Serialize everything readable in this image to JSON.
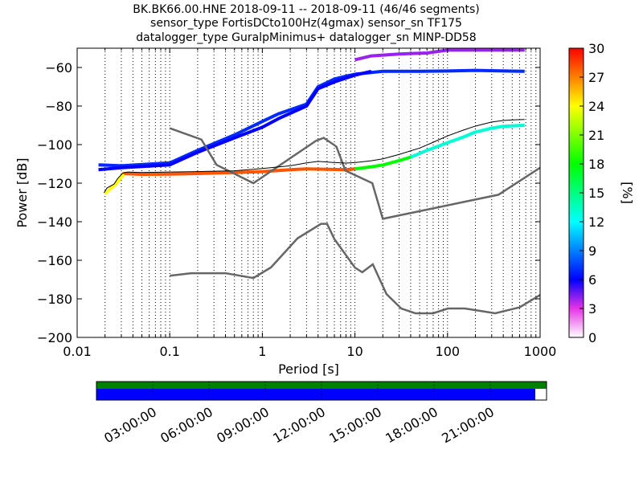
{
  "title_lines": [
    "BK.BK66.00.HNE   2018-09-11 -- 2018-09-11  (46/46 segments)",
    "sensor_type FortisDCto100Hz(4gmax) sensor_sn TF175",
    "datalogger_type GuralpMinimus+ datalogger_sn MINP-DD58"
  ],
  "chart_data": {
    "type": "heatmap",
    "title": "BK.BK66.00.HNE   2018-09-11 -- 2018-09-11  (46/46 segments)",
    "xlabel": "Period [s]",
    "ylabel": "Power [dB]",
    "x_scale": "log",
    "xlim": [
      0.01,
      1000
    ],
    "ylim": [
      -200,
      -50
    ],
    "x_ticks": [
      0.01,
      0.1,
      1,
      10,
      100,
      1000
    ],
    "x_tick_labels": [
      "0.01",
      "0.1",
      "1",
      "10",
      "100",
      "1000"
    ],
    "y_ticks": [
      -200,
      -180,
      -160,
      -140,
      -120,
      -100,
      -80,
      -60
    ],
    "y_tick_labels": [
      "−200",
      "−180",
      "−160",
      "−140",
      "−120",
      "−100",
      "−80",
      "−60"
    ],
    "grid": "dotted vertical",
    "colorbar": {
      "label": "[%]",
      "range": [
        0,
        30
      ],
      "ticks": [
        0,
        3,
        6,
        9,
        12,
        15,
        18,
        21,
        24,
        27,
        30
      ],
      "colormap": "pqlx"
    },
    "noise_models": {
      "high": [
        [
          0.1,
          -91.5
        ],
        [
          0.22,
          -97.4
        ],
        [
          0.32,
          -110.5
        ],
        [
          0.8,
          -120
        ],
        [
          3.8,
          -98
        ],
        [
          4.6,
          -96.5
        ],
        [
          6.3,
          -101
        ],
        [
          7.9,
          -113.5
        ],
        [
          15.4,
          -120
        ],
        [
          20,
          -138.5
        ],
        [
          354.8,
          -126
        ],
        [
          1000,
          -112
        ]
      ],
      "low": [
        [
          0.1,
          -168
        ],
        [
          0.17,
          -166.7
        ],
        [
          0.4,
          -166.7
        ],
        [
          0.8,
          -169.2
        ],
        [
          1.24,
          -163.7
        ],
        [
          2.4,
          -148.6
        ],
        [
          4.3,
          -141.1
        ],
        [
          5,
          -141.1
        ],
        [
          6,
          -149
        ],
        [
          10,
          -163.8
        ],
        [
          12,
          -166.2
        ],
        [
          15.6,
          -162.1
        ],
        [
          21.9,
          -177.5
        ],
        [
          31.6,
          -185
        ],
        [
          45,
          -187.5
        ],
        [
          70,
          -187.5
        ],
        [
          101,
          -185
        ],
        [
          154,
          -185
        ],
        [
          328,
          -187.5
        ],
        [
          600,
          -184.4
        ],
        [
          1000,
          -178
        ]
      ]
    },
    "mean_curve": [
      [
        0.0195,
        -125
      ],
      [
        0.021,
        -122.5
      ],
      [
        0.025,
        -120.5
      ],
      [
        0.0275,
        -117.5
      ],
      [
        0.031,
        -114.8
      ],
      [
        0.035,
        -114.2
      ],
      [
        0.05,
        -114.5
      ],
      [
        0.1,
        -114.2
      ],
      [
        0.2,
        -114
      ],
      [
        0.5,
        -113.6
      ],
      [
        1,
        -112.4
      ],
      [
        2,
        -111
      ],
      [
        3,
        -109.5
      ],
      [
        4,
        -108.7
      ],
      [
        6,
        -109.3
      ],
      [
        8,
        -109.6
      ],
      [
        10,
        -109.3
      ],
      [
        15,
        -108.4
      ],
      [
        20,
        -107.4
      ],
      [
        30,
        -105.1
      ],
      [
        50,
        -101.8
      ],
      [
        70,
        -98.8
      ],
      [
        100,
        -95.5
      ],
      [
        150,
        -92.4
      ],
      [
        200,
        -90.4
      ],
      [
        300,
        -88.3
      ],
      [
        400,
        -87.5
      ],
      [
        500,
        -87.2
      ],
      [
        680,
        -87
      ]
    ],
    "psd_bands": [
      {
        "percent": 28,
        "points": [
          [
            0.031,
            -115
          ],
          [
            0.05,
            -115.4
          ],
          [
            0.1,
            -115.3
          ],
          [
            0.2,
            -115
          ],
          [
            0.5,
            -114.5
          ],
          [
            1,
            -114
          ],
          [
            2,
            -113
          ],
          [
            3,
            -112.6
          ],
          [
            5,
            -112.8
          ],
          [
            8,
            -113
          ],
          [
            10,
            -112.6
          ]
        ]
      },
      {
        "percent": 24,
        "points": [
          [
            0.02,
            -125.5
          ],
          [
            0.023,
            -122.8
          ],
          [
            0.026,
            -120.7
          ],
          [
            0.029,
            -117.7
          ],
          [
            0.032,
            -115.4
          ]
        ]
      },
      {
        "percent": 18,
        "points": [
          [
            10,
            -112.6
          ],
          [
            15,
            -111.5
          ],
          [
            20,
            -110.6
          ],
          [
            30,
            -108.3
          ],
          [
            40,
            -106.5
          ]
        ]
      },
      {
        "percent": 13,
        "points": [
          [
            40,
            -106.5
          ],
          [
            60,
            -103
          ],
          [
            100,
            -99
          ],
          [
            150,
            -96
          ],
          [
            200,
            -93.5
          ],
          [
            300,
            -91.5
          ],
          [
            400,
            -90.5
          ],
          [
            680,
            -90
          ]
        ]
      },
      {
        "percent": 7,
        "points": [
          [
            0.017,
            -110.5
          ],
          [
            0.03,
            -111
          ],
          [
            0.1,
            -109.5
          ],
          [
            0.2,
            -103
          ],
          [
            0.5,
            -95
          ],
          [
            1,
            -88
          ],
          [
            1.5,
            -84
          ],
          [
            3,
            -79
          ],
          [
            4,
            -70
          ],
          [
            6,
            -66
          ],
          [
            8,
            -64.5
          ],
          [
            10,
            -63.5
          ],
          [
            20,
            -62
          ],
          [
            50,
            -62
          ],
          [
            100,
            -61.8
          ],
          [
            200,
            -61.5
          ],
          [
            680,
            -62
          ]
        ]
      },
      {
        "percent": 6,
        "points": [
          [
            0.017,
            -113
          ],
          [
            0.03,
            -112
          ],
          [
            0.1,
            -110.5
          ],
          [
            0.2,
            -104
          ],
          [
            0.5,
            -96.5
          ],
          [
            1,
            -91
          ],
          [
            1.5,
            -86.5
          ],
          [
            3,
            -80
          ],
          [
            4,
            -71
          ],
          [
            6,
            -67.5
          ],
          [
            8,
            -65.5
          ],
          [
            10,
            -64
          ],
          [
            15,
            -62
          ]
        ]
      },
      {
        "percent": 4,
        "points": [
          [
            10,
            -56
          ],
          [
            15,
            -54
          ],
          [
            30,
            -53
          ],
          [
            60,
            -52.5
          ],
          [
            100,
            -51
          ],
          [
            200,
            -51
          ],
          [
            680,
            -51
          ]
        ]
      }
    ]
  },
  "timeline": {
    "labels": [
      "03:00:00",
      "06:00:00",
      "09:00:00",
      "12:00:00",
      "15:00:00",
      "18:00:00",
      "21:00:00"
    ],
    "hours": [
      3,
      6,
      9,
      12,
      15,
      18,
      21
    ],
    "coverage_hours": 23.4,
    "data_color": "#0000ff",
    "availability_color": "#008000"
  }
}
